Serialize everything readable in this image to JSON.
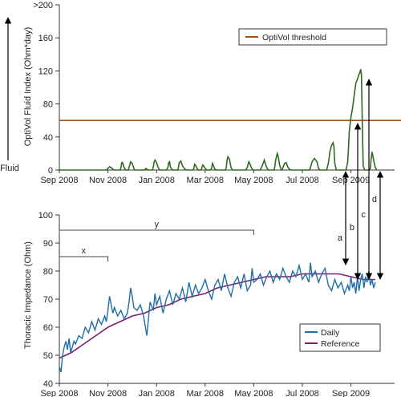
{
  "chart_data": [
    {
      "type": "line",
      "ylabel": "OptiVol Fluid Index (Ohm*day)",
      "side_label": "Fluid",
      "x_tick_labels": [
        "Sep 2008",
        "Nov 2008",
        "Jan 2008",
        "Mar 2008",
        "May 2008",
        "Jul 2008",
        "Sep 2009"
      ],
      "y_ticks": [
        0,
        40,
        80,
        120,
        160
      ],
      "y_top_label": ">200",
      "ylim": [
        0,
        200
      ],
      "xlim": [
        0,
        400
      ],
      "threshold": {
        "name": "OptiVol threshold",
        "value": 60,
        "color": "#a0521d"
      },
      "series": [
        {
          "color": "#2e6b1f",
          "x": [
            0,
            30,
            58,
            60,
            62,
            64,
            66,
            68,
            70,
            72,
            75,
            76,
            77,
            78,
            80,
            82,
            84,
            85,
            86,
            88,
            90,
            92,
            93,
            94,
            96,
            98,
            100,
            102,
            105,
            106,
            107,
            108,
            110,
            112,
            115,
            116,
            117,
            118,
            120,
            122,
            124,
            126,
            128,
            132,
            134,
            135,
            136,
            137,
            139,
            140,
            142,
            144,
            146,
            147,
            148,
            150,
            152,
            155,
            158,
            160,
            165,
            166,
            167,
            168,
            170,
            172,
            175,
            176,
            177,
            178,
            180,
            182,
            184,
            186,
            188,
            189,
            190,
            192,
            195,
            200,
            205,
            206,
            207,
            208,
            210,
            212,
            214,
            216,
            218,
            220,
            222,
            224,
            226,
            228,
            230,
            232,
            233,
            234,
            235,
            237,
            239,
            240,
            242,
            244,
            246,
            248,
            250,
            252,
            253,
            254,
            256,
            258,
            260,
            265,
            266,
            267,
            269,
            270,
            272,
            274,
            275,
            276,
            278,
            280,
            282,
            284,
            286,
            288,
            290,
            300,
            302,
            304,
            306,
            308,
            309,
            310,
            312,
            315,
            318,
            320,
            322,
            324,
            326,
            328,
            330,
            331,
            332,
            333,
            334,
            336,
            338,
            339,
            340,
            342,
            344,
            346,
            348,
            350,
            352,
            353,
            354,
            356,
            357,
            358,
            360,
            362,
            364,
            366,
            368,
            370,
            371,
            372,
            373,
            374,
            375,
            377,
            380,
            382,
            384,
            385,
            386,
            388,
            390,
            392
          ],
          "y": [
            0,
            0,
            0,
            2,
            4,
            3,
            1,
            0,
            0,
            0,
            0,
            3,
            9,
            9,
            3,
            0,
            0,
            0,
            3,
            10,
            8,
            2,
            0,
            0,
            0,
            0,
            0,
            0,
            0,
            1,
            2,
            1,
            0,
            0,
            0,
            4,
            10,
            12,
            9,
            3,
            0,
            0,
            0,
            0,
            3,
            9,
            10,
            4,
            1,
            0,
            0,
            0,
            0,
            3,
            9,
            11,
            5,
            1,
            0,
            0,
            0,
            2,
            7,
            6,
            2,
            0,
            0,
            3,
            6,
            5,
            2,
            0,
            0,
            0,
            2,
            8,
            6,
            1,
            0,
            0,
            0,
            3,
            12,
            16,
            13,
            3,
            0,
            0,
            0,
            0,
            0,
            0,
            0,
            0,
            0,
            3,
            7,
            10,
            8,
            3,
            0,
            0,
            0,
            0,
            0,
            0,
            4,
            9,
            12,
            9,
            3,
            0,
            0,
            0,
            4,
            12,
            20,
            17,
            6,
            0,
            0,
            3,
            8,
            9,
            4,
            1,
            0,
            0,
            0,
            0,
            0,
            0,
            0,
            0,
            0,
            3,
            10,
            14,
            10,
            2,
            0,
            0,
            0,
            0,
            0,
            4,
            8,
            14,
            22,
            30,
            33,
            28,
            8,
            0,
            0,
            0,
            0,
            0,
            0,
            0,
            0,
            10,
            28,
            48,
            64,
            75,
            90,
            105,
            110,
            116,
            118,
            122,
            115,
            60,
            5,
            0,
            0,
            0,
            2,
            15,
            22,
            12,
            3,
            0
          ]
        }
      ],
      "arrows": [
        "a",
        "b",
        "c",
        "d"
      ]
    },
    {
      "type": "line",
      "ylabel": "Thoracic Impedance (Ohm)",
      "x_tick_labels": [
        "Sep 2008",
        "Nov 2008",
        "Jan 2008",
        "Mar 2008",
        "May 2008",
        "Jul 2008",
        "Sep 2009"
      ],
      "y_ticks": [
        40,
        50,
        60,
        70,
        80,
        90,
        100
      ],
      "ylim": [
        40,
        100
      ],
      "xlim": [
        0,
        400
      ],
      "brackets": [
        {
          "label": "x",
          "x_start": 0,
          "x_end": 60
        },
        {
          "label": "y",
          "x_start": 0,
          "x_end": 240
        }
      ],
      "legend": [
        "Daily",
        "Reference"
      ],
      "series": [
        {
          "name": "Daily",
          "color": "#1f6ea8",
          "x": [
            0,
            2,
            4,
            6,
            8,
            10,
            12,
            14,
            16,
            18,
            20,
            24,
            28,
            32,
            36,
            40,
            44,
            48,
            52,
            56,
            58,
            60,
            62,
            64,
            66,
            68,
            72,
            76,
            80,
            84,
            86,
            88,
            90,
            92,
            96,
            100,
            104,
            108,
            112,
            116,
            118,
            120,
            124,
            128,
            132,
            136,
            140,
            144,
            148,
            152,
            156,
            160,
            164,
            168,
            172,
            176,
            180,
            184,
            188,
            192,
            196,
            200,
            204,
            208,
            212,
            216,
            220,
            224,
            228,
            232,
            236,
            238,
            240,
            244,
            248,
            252,
            256,
            260,
            264,
            268,
            272,
            276,
            280,
            284,
            288,
            292,
            296,
            300,
            304,
            308,
            310,
            312,
            316,
            320,
            324,
            328,
            332,
            336,
            340,
            344,
            348,
            352,
            356,
            358,
            360,
            362,
            364,
            366,
            368,
            370,
            372,
            374,
            376,
            378,
            380,
            382,
            384,
            386,
            388,
            390
          ],
          "y": [
            46,
            44,
            50,
            53,
            55,
            52,
            56,
            51,
            53,
            55,
            54,
            57,
            56,
            60,
            58,
            62,
            59,
            63,
            61,
            64,
            62,
            66,
            71,
            68,
            65,
            67,
            64,
            66,
            63,
            65,
            69,
            74,
            71,
            67,
            66,
            68,
            64,
            57,
            69,
            66,
            72,
            68,
            71,
            65,
            70,
            73,
            68,
            72,
            70,
            74,
            69,
            76,
            71,
            75,
            72,
            74,
            77,
            73,
            70,
            75,
            77,
            73,
            79,
            74,
            71,
            76,
            78,
            74,
            79,
            73,
            75,
            81,
            76,
            77,
            79,
            75,
            78,
            80,
            76,
            79,
            77,
            81,
            78,
            76,
            80,
            78,
            82,
            77,
            79,
            76,
            83,
            78,
            80,
            76,
            79,
            81,
            75,
            73,
            77,
            74,
            76,
            72,
            75,
            73,
            78,
            74,
            76,
            72,
            78,
            73,
            77,
            79,
            74,
            78,
            76,
            80,
            75,
            77,
            74,
            76
          ],
          "labels_at": "daily"
        },
        {
          "name": "Reference",
          "color": "#7a1f6e",
          "x": [
            0,
            15,
            30,
            45,
            60,
            75,
            90,
            105,
            120,
            135,
            150,
            165,
            180,
            195,
            210,
            225,
            240,
            255,
            270,
            285,
            300,
            315,
            330,
            345,
            360,
            375,
            390
          ],
          "y": [
            49,
            51,
            54,
            57,
            60,
            62,
            64,
            65,
            67,
            68,
            70,
            71,
            72,
            74,
            75,
            76,
            77,
            78,
            78,
            78,
            79,
            79,
            79,
            79,
            78,
            77,
            77
          ]
        }
      ]
    }
  ]
}
